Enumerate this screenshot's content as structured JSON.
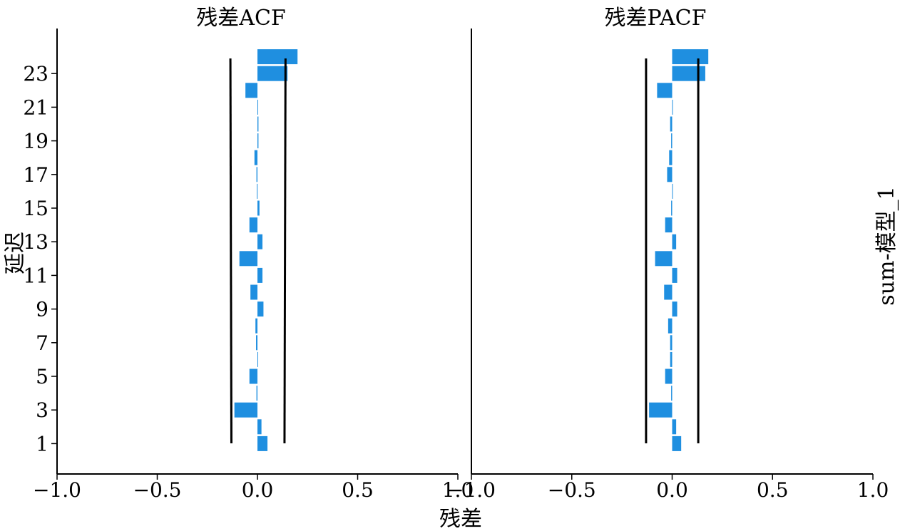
{
  "chart_data": {
    "type": "bar",
    "orientation": "horizontal",
    "colors": {
      "bar": "#1f8fe0",
      "conf_line": "#000000",
      "axis": "#000000"
    },
    "xlabel": "残差",
    "ylabel": "延迟",
    "facet_label": "sum-模型_1",
    "xlim": [
      -1.0,
      1.0
    ],
    "x_ticks": [
      "−1.0",
      "−0.5",
      "0.0",
      "0.5",
      "1.0"
    ],
    "ylim": [
      0,
      25
    ],
    "y_ticks": [
      "1",
      "3",
      "5",
      "7",
      "9",
      "11",
      "13",
      "15",
      "17",
      "19",
      "21",
      "23"
    ],
    "lags": [
      1,
      2,
      3,
      4,
      5,
      6,
      7,
      8,
      9,
      10,
      11,
      12,
      13,
      14,
      15,
      16,
      17,
      18,
      19,
      20,
      21,
      22,
      23,
      24
    ],
    "panels": [
      {
        "title": "残差ACF",
        "values": [
          0.05,
          0.02,
          -0.115,
          -0.005,
          -0.04,
          0.003,
          -0.007,
          -0.01,
          0.03,
          -0.035,
          0.025,
          -0.09,
          0.025,
          -0.04,
          0.01,
          -0.003,
          -0.005,
          -0.015,
          0.005,
          0.005,
          0.0,
          -0.06,
          0.15,
          0.2
        ],
        "conf_lower": [
          -0.13,
          -0.135
        ],
        "conf_upper": [
          0.135,
          0.14
        ]
      },
      {
        "title": "残差PACF",
        "values": [
          0.045,
          0.02,
          -0.115,
          -0.005,
          -0.035,
          -0.01,
          -0.01,
          -0.02,
          0.025,
          -0.04,
          0.025,
          -0.085,
          0.02,
          -0.035,
          -0.005,
          0.0,
          -0.025,
          -0.015,
          -0.005,
          -0.01,
          0.0,
          -0.075,
          0.165,
          0.18
        ],
        "conf_lower": [
          -0.13,
          -0.13
        ],
        "conf_upper": [
          0.13,
          0.13
        ]
      }
    ]
  }
}
